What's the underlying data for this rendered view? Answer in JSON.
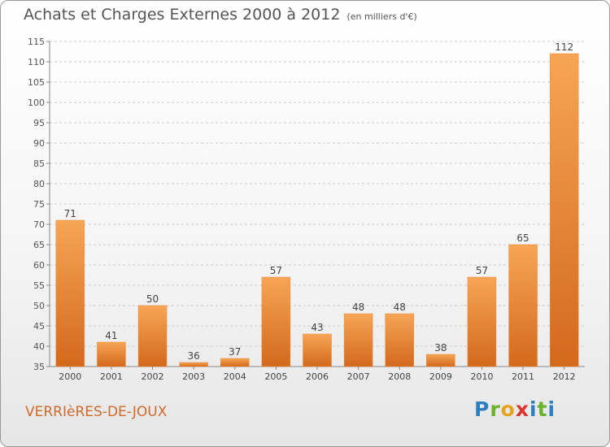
{
  "header": {
    "title": "Achats et Charges Externes 2000 à 2012",
    "unit": "(en milliers d'€)"
  },
  "footer": {
    "commune": "VERRIèRES-DE-JOUX",
    "logo_text": "Proxiti"
  },
  "colors": {
    "bar_light": "#f7a556",
    "bar_dark": "#d3691c",
    "grid": "#cccccc",
    "commune_text": "#d06a2a"
  },
  "chart_data": {
    "type": "bar",
    "title": "Achats et Charges Externes 2000 à 2012",
    "subtitle": "(en milliers d'€)",
    "xlabel": "",
    "ylabel": "",
    "categories": [
      "2000",
      "2001",
      "2002",
      "2003",
      "2004",
      "2005",
      "2006",
      "2007",
      "2008",
      "2009",
      "2010",
      "2011",
      "2012"
    ],
    "values": [
      71,
      41,
      50,
      36,
      37,
      57,
      43,
      48,
      48,
      38,
      57,
      65,
      112
    ],
    "ylim": [
      35,
      115
    ],
    "yticks": [
      35,
      40,
      45,
      50,
      55,
      60,
      65,
      70,
      75,
      80,
      85,
      90,
      95,
      100,
      105,
      110,
      115
    ],
    "grid": true,
    "legend": "none"
  }
}
